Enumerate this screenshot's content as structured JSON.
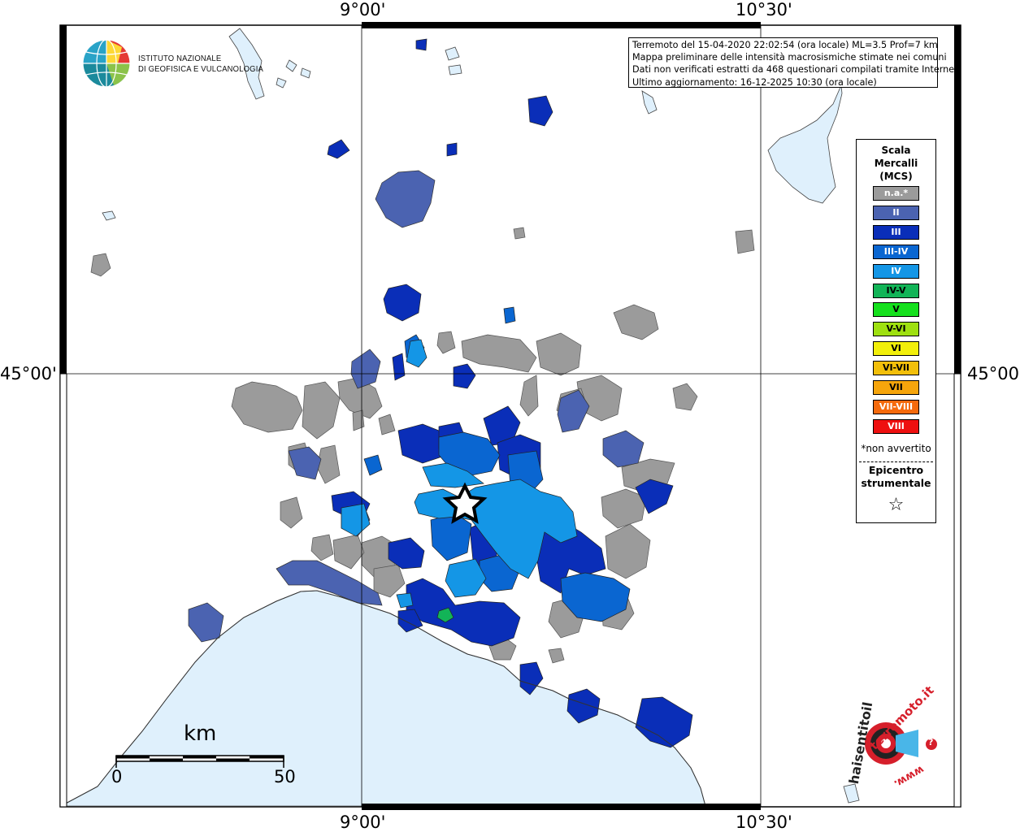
{
  "map": {
    "coordinates": {
      "top_left_lon": "9°00'",
      "top_right_lon": "10°30'",
      "bottom_left_lon": "9°00'",
      "bottom_right_lon": "10°30'",
      "left_lat": "45°00'",
      "right_lat": "45°00'"
    },
    "info": {
      "line1": "Terremoto del 15-04-2020 22:02:54 (ora locale) ML=3.5 Prof=7 km",
      "line2": "Mappa preliminare delle intensità macrosismiche stimate nei comuni",
      "line3": "Dati non verificati estratti da 468 questionari compilati tramite Internet.",
      "line4": "Ultimo aggiornamento: 16-12-2025 10:30 (ora locale)"
    },
    "institute": {
      "line1": "ISTITUTO NAZIONALE",
      "line2": "DI GEOFISICA E VULCANOLOGIA"
    },
    "legend": {
      "title_line1": "Scala",
      "title_line2": "Mercalli",
      "title_line3": "(MCS)",
      "items": [
        {
          "label": "n.a.*",
          "color": "#9b9b9b"
        },
        {
          "label": "II",
          "color": "#4b63b1"
        },
        {
          "label": "III",
          "color": "#0a2eb8"
        },
        {
          "label": "III-IV",
          "color": "#0a66d1"
        },
        {
          "label": "IV",
          "color": "#1496e6"
        },
        {
          "label": "IV-V",
          "color": "#12b457"
        },
        {
          "label": "V",
          "color": "#15e01d"
        },
        {
          "label": "V-VI",
          "color": "#9ee010"
        },
        {
          "label": "VI",
          "color": "#f2ef0a"
        },
        {
          "label": "VI-VII",
          "color": "#f2bf0a"
        },
        {
          "label": "VII",
          "color": "#f6a50c"
        },
        {
          "label": "VII-VIII",
          "color": "#f56a0c"
        },
        {
          "label": "VIII",
          "color": "#ee1010"
        }
      ],
      "note": "*non avvertito",
      "epicenter_line1": "Epicentro",
      "epicenter_line2": "strumentale",
      "epicenter_symbol": "☆"
    },
    "scale_bar": {
      "unit": "km",
      "start": "0",
      "end": "50"
    },
    "badge": {
      "text_top": "terremoto.it",
      "text_side": "haisentitoil",
      "text_bottom": "www.",
      "question": "?"
    },
    "colors": {
      "sea": "#dff0fc",
      "land": "#ffffff",
      "grey": "#9b9b9b",
      "II": "#4b63b1",
      "III": "#0a2eb8",
      "III_IV": "#0a66d1",
      "IV": "#1496e6",
      "IV_V": "#12b457"
    }
  }
}
